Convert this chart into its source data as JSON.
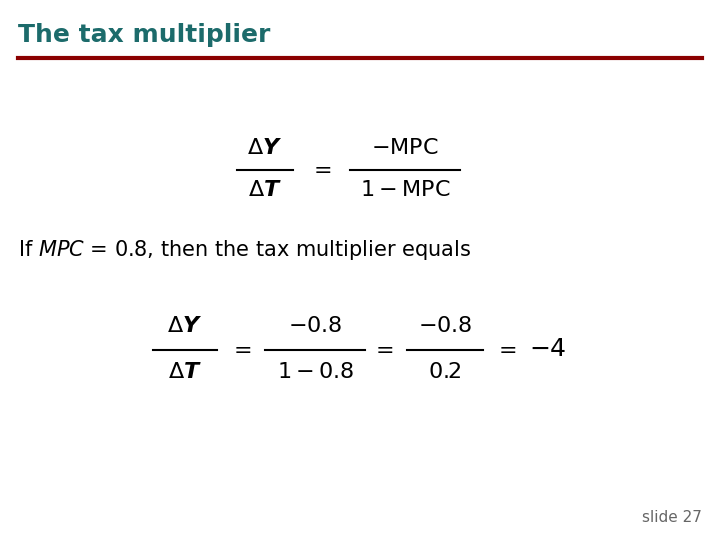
{
  "title": "The tax multiplier",
  "title_color": "#1c6b6b",
  "title_fontsize": 18,
  "line_color": "#8b0000",
  "bg_color": "#ffffff",
  "text_color": "#000000",
  "slide_label": "slide 27",
  "formula1_fs": 16,
  "formula2_fs": 16,
  "text_fs": 15
}
